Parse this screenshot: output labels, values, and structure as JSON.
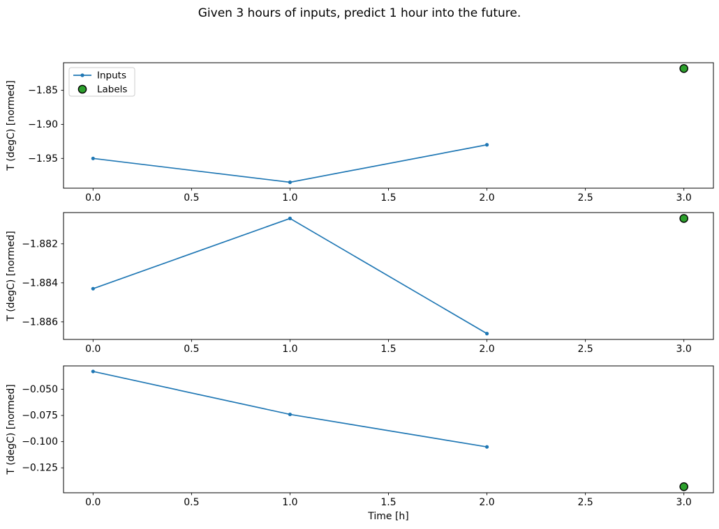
{
  "figure": {
    "title": "Given 3 hours of inputs, predict 1 hour into the future.",
    "background": "#ffffff"
  },
  "colors": {
    "inputs_line": "#1f77b4",
    "labels_fill": "#2ca02c",
    "labels_edge": "#000000",
    "axis": "#000000",
    "legend_border": "#cccccc",
    "legend_background": "#ffffff"
  },
  "legend": {
    "items": [
      {
        "label": "Inputs",
        "type": "line-with-dot",
        "color": "#1f77b4"
      },
      {
        "label": "Labels",
        "type": "circle",
        "fill": "#2ca02c",
        "edge": "#000000"
      }
    ]
  },
  "chart_data": [
    {
      "type": "line",
      "title": "",
      "xlabel": "",
      "ylabel": "T (degC) [normed]",
      "xlim": [
        -0.15,
        3.15
      ],
      "ylim": [
        -1.9937,
        -1.8095
      ],
      "x_ticks": [
        0.0,
        0.5,
        1.0,
        1.5,
        2.0,
        2.5,
        3.0
      ],
      "x_tick_labels": [
        "0.0",
        "0.5",
        "1.0",
        "1.5",
        "2.0",
        "2.5",
        "3.0"
      ],
      "y_ticks": [
        -1.85,
        -1.9,
        -1.95
      ],
      "y_tick_labels": [
        "−1.85",
        "−1.90",
        "−1.95"
      ],
      "grid": false,
      "legend_visible": true,
      "legend_position": "upper left",
      "series": [
        {
          "name": "Inputs",
          "type": "line",
          "marker": "dot",
          "color": "#1f77b4",
          "x": [
            0,
            1,
            2
          ],
          "y": [
            -1.95,
            -1.985,
            -1.93
          ]
        },
        {
          "name": "Labels",
          "type": "scatter",
          "marker": "circle",
          "fill": "#2ca02c",
          "edge": "#000000",
          "x": [
            3
          ],
          "y": [
            -1.818
          ]
        }
      ]
    },
    {
      "type": "line",
      "title": "",
      "xlabel": "",
      "ylabel": "T (degC) [normed]",
      "xlim": [
        -0.15,
        3.15
      ],
      "ylim": [
        -1.8869,
        -1.8804
      ],
      "x_ticks": [
        0.0,
        0.5,
        1.0,
        1.5,
        2.0,
        2.5,
        3.0
      ],
      "x_tick_labels": [
        "0.0",
        "0.5",
        "1.0",
        "1.5",
        "2.0",
        "2.5",
        "3.0"
      ],
      "y_ticks": [
        -1.882,
        -1.884,
        -1.886
      ],
      "y_tick_labels": [
        "−1.882",
        "−1.884",
        "−1.886"
      ],
      "grid": false,
      "legend_visible": false,
      "series": [
        {
          "name": "Inputs",
          "type": "line",
          "marker": "dot",
          "color": "#1f77b4",
          "x": [
            0,
            1,
            2
          ],
          "y": [
            -1.8843,
            -1.8807,
            -1.8866
          ]
        },
        {
          "name": "Labels",
          "type": "scatter",
          "marker": "circle",
          "fill": "#2ca02c",
          "edge": "#000000",
          "x": [
            3
          ],
          "y": [
            -1.8807
          ]
        }
      ]
    },
    {
      "type": "line",
      "title": "",
      "xlabel": "Time [h]",
      "ylabel": "T (degC) [normed]",
      "xlim": [
        -0.15,
        3.15
      ],
      "ylim": [
        -0.1488,
        -0.0277
      ],
      "x_ticks": [
        0.0,
        0.5,
        1.0,
        1.5,
        2.0,
        2.5,
        3.0
      ],
      "x_tick_labels": [
        "0.0",
        "0.5",
        "1.0",
        "1.5",
        "2.0",
        "2.5",
        "3.0"
      ],
      "y_ticks": [
        -0.05,
        -0.075,
        -0.1,
        -0.125
      ],
      "y_tick_labels": [
        "−0.050",
        "−0.075",
        "−0.100",
        "−0.125"
      ],
      "grid": false,
      "legend_visible": false,
      "series": [
        {
          "name": "Inputs",
          "type": "line",
          "marker": "dot",
          "color": "#1f77b4",
          "x": [
            0,
            1,
            2
          ],
          "y": [
            -0.033,
            -0.074,
            -0.105
          ]
        },
        {
          "name": "Labels",
          "type": "scatter",
          "marker": "circle",
          "fill": "#2ca02c",
          "edge": "#000000",
          "x": [
            3
          ],
          "y": [
            -0.143
          ]
        }
      ]
    }
  ]
}
